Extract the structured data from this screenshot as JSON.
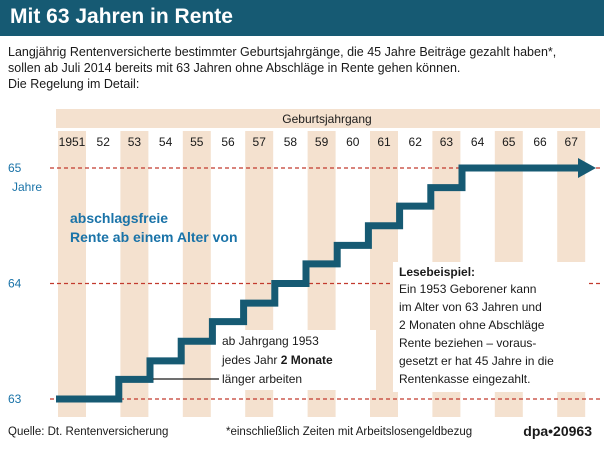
{
  "title": "Mit 63 Jahren in Rente",
  "intro": {
    "line1": "Langjährig Rentenversicherte bestimmter Geburtsjahrgänge, die 45 Jahre Beiträge gezahlt haben*,",
    "line2": "sollen ab Juli 2014 bereits mit 63 Jahren ohne Abschläge in Rente gehen können.",
    "line3": "Die Regelung im Detail:"
  },
  "chart_data": {
    "type": "line",
    "xlabel": "Geburtsjahrgang",
    "ylabel": "Jahre",
    "x_tick_labels": [
      "1951",
      "52",
      "53",
      "54",
      "55",
      "56",
      "57",
      "58",
      "59",
      "60",
      "61",
      "62",
      "63",
      "64",
      "65",
      "66",
      "67"
    ],
    "y_ticks": [
      63,
      64,
      65
    ],
    "ylim": [
      63,
      65
    ],
    "series": [
      {
        "x": [
          "1951",
          "52",
          "53",
          "54",
          "55",
          "56",
          "57",
          "58",
          "59",
          "60",
          "61",
          "62",
          "63",
          "64",
          "65",
          "66",
          "67"
        ],
        "values": [
          63,
          63,
          63.17,
          63.33,
          63.5,
          63.67,
          63.83,
          64,
          64.17,
          64.33,
          64.5,
          64.67,
          64.83,
          65,
          65,
          65,
          65
        ]
      }
    ],
    "annotations": {
      "left_label_line1": "abschlagsfreie",
      "left_label_line2": "Rente ab einem Alter von",
      "callout_line1": "ab Jahrgang 1953",
      "callout_line2_prefix": "jedes Jahr ",
      "callout_line2_bold": "2 Monate",
      "callout_line3": "länger arbeiten",
      "example_title": "Lesebeispiel:",
      "example_lines": [
        "Ein 1953 Geborener kann",
        "im Alter von 63 Jahren und",
        "2 Monaten ohne Abschläge",
        "Rente beziehen – voraus-",
        "gesetzt er hat 45 Jahre in die",
        "Rentenkasse eingezahlt."
      ]
    },
    "colors": {
      "line": "#165a73",
      "stripe": "#f4e1cf",
      "header_band": "#f4e1cf",
      "gridline": "#c23a2e",
      "label_blue": "#1a73a8",
      "title_bar": "#165a73"
    }
  },
  "footer": {
    "source": "Quelle: Dt. Rentenversicherung",
    "note": "*einschließlich Zeiten mit Arbeitslosengeldbezug",
    "credit": "dpa•20963"
  }
}
